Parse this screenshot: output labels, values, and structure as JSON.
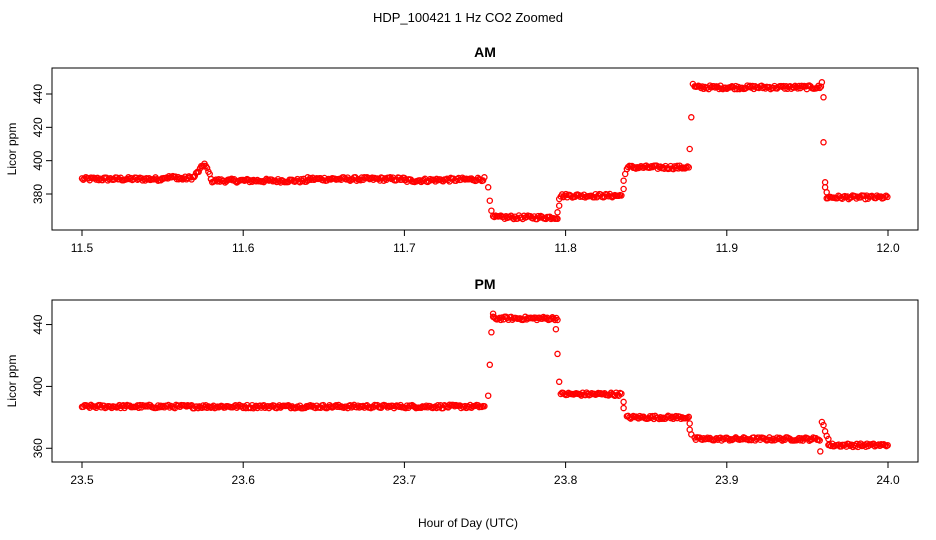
{
  "figure": {
    "title": "HDP_100421  1 Hz CO2 Zoomed",
    "xlabel": "Hour of Day (UTC)"
  },
  "chart_data": [
    {
      "type": "scatter",
      "title": "AM",
      "ylabel": "Licor ppm",
      "xlim": [
        11.5,
        12.0
      ],
      "ylim": [
        362,
        452
      ],
      "xticks": [
        11.5,
        11.6,
        11.7,
        11.8,
        11.9,
        12.0
      ],
      "xtick_labels": [
        "11.5",
        "11.6",
        "11.7",
        "11.8",
        "11.9",
        "12.0"
      ],
      "yticks": [
        380,
        400,
        420,
        440
      ],
      "ytick_labels": [
        "380",
        "400",
        "420",
        "440"
      ],
      "grid": false,
      "marker": "open-circle",
      "color": "#ff0000",
      "series": [
        {
          "segments": [
            {
              "x": [
                11.5,
                11.55
              ],
              "y": [
                389,
                389
              ]
            },
            {
              "x": [
                11.55,
                11.56
              ],
              "y": [
                390,
                390
              ]
            },
            {
              "x": [
                11.56,
                11.57
              ],
              "y": [
                389,
                390
              ]
            },
            {
              "x": [
                11.57,
                11.576
              ],
              "y": [
                391,
                398
              ]
            },
            {
              "x": [
                11.576,
                11.58
              ],
              "y": [
                398,
                390
              ]
            },
            {
              "x": [
                11.58,
                11.64
              ],
              "y": [
                388,
                388
              ]
            },
            {
              "x": [
                11.64,
                11.7
              ],
              "y": [
                389,
                389
              ]
            },
            {
              "x": [
                11.7,
                11.75
              ],
              "y": [
                388,
                389
              ]
            },
            {
              "x": [
                11.755,
                11.795
              ],
              "y": [
                366,
                366
              ]
            },
            {
              "x": [
                11.797,
                11.835
              ],
              "y": [
                379,
                379
              ]
            },
            {
              "x": [
                11.838,
                11.877
              ],
              "y": [
                396,
                396
              ]
            },
            {
              "x": [
                11.88,
                11.959
              ],
              "y": [
                444,
                444
              ]
            },
            {
              "x": [
                11.962,
                12.0
              ],
              "y": [
                378,
                378
              ]
            }
          ],
          "points": [
            {
              "x": 11.752,
              "y": 384
            },
            {
              "x": 11.753,
              "y": 376
            },
            {
              "x": 11.754,
              "y": 370
            },
            {
              "x": 11.795,
              "y": 369
            },
            {
              "x": 11.796,
              "y": 373
            },
            {
              "x": 11.796,
              "y": 377
            },
            {
              "x": 11.836,
              "y": 383
            },
            {
              "x": 11.836,
              "y": 388
            },
            {
              "x": 11.837,
              "y": 392
            },
            {
              "x": 11.877,
              "y": 407
            },
            {
              "x": 11.878,
              "y": 426
            },
            {
              "x": 11.879,
              "y": 446
            },
            {
              "x": 11.959,
              "y": 447
            },
            {
              "x": 11.96,
              "y": 438
            },
            {
              "x": 11.96,
              "y": 411
            },
            {
              "x": 11.961,
              "y": 387
            },
            {
              "x": 11.961,
              "y": 384
            },
            {
              "x": 11.962,
              "y": 381
            }
          ]
        }
      ]
    },
    {
      "type": "scatter",
      "title": "PM",
      "ylabel": "Licor ppm",
      "xlim": [
        23.5,
        24.0
      ],
      "ylim": [
        355,
        452
      ],
      "xticks": [
        23.5,
        23.6,
        23.7,
        23.8,
        23.9,
        24.0
      ],
      "xtick_labels": [
        "23.5",
        "23.6",
        "23.7",
        "23.8",
        "23.9",
        "24.0"
      ],
      "yticks": [
        360,
        400,
        440
      ],
      "ytick_labels": [
        "360",
        "400",
        "440"
      ],
      "grid": false,
      "marker": "open-circle",
      "color": "#ff0000",
      "series": [
        {
          "segments": [
            {
              "x": [
                23.5,
                23.75
              ],
              "y": [
                387,
                387
              ]
            },
            {
              "x": [
                23.755,
                23.795
              ],
              "y": [
                444,
                444
              ]
            },
            {
              "x": [
                23.797,
                23.835
              ],
              "y": [
                395,
                395
              ]
            },
            {
              "x": [
                23.838,
                23.877
              ],
              "y": [
                380,
                380
              ]
            },
            {
              "x": [
                23.88,
                23.958
              ],
              "y": [
                366,
                366
              ]
            },
            {
              "x": [
                23.963,
                24.0
              ],
              "y": [
                362,
                362
              ]
            }
          ],
          "points": [
            {
              "x": 23.752,
              "y": 394
            },
            {
              "x": 23.753,
              "y": 414
            },
            {
              "x": 23.754,
              "y": 435
            },
            {
              "x": 23.755,
              "y": 447
            },
            {
              "x": 23.794,
              "y": 437
            },
            {
              "x": 23.795,
              "y": 421
            },
            {
              "x": 23.796,
              "y": 403
            },
            {
              "x": 23.836,
              "y": 390
            },
            {
              "x": 23.836,
              "y": 386
            },
            {
              "x": 23.877,
              "y": 376
            },
            {
              "x": 23.877,
              "y": 372
            },
            {
              "x": 23.878,
              "y": 369
            },
            {
              "x": 23.958,
              "y": 358
            },
            {
              "x": 23.959,
              "y": 377
            },
            {
              "x": 23.96,
              "y": 375
            },
            {
              "x": 23.961,
              "y": 371
            },
            {
              "x": 23.962,
              "y": 368
            },
            {
              "x": 23.963,
              "y": 366
            }
          ]
        }
      ]
    }
  ]
}
